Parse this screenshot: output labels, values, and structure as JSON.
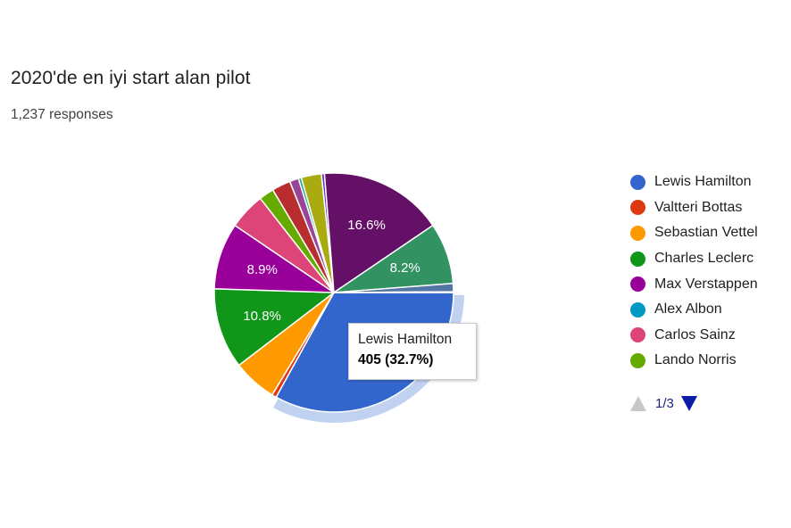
{
  "header": {
    "title": "2020'de en iyi start alan pilot",
    "responses": "1,237 responses"
  },
  "chart_data": {
    "type": "pie",
    "total": 1237,
    "slices": [
      {
        "name": "Lewis Hamilton",
        "percent": 32.7,
        "color": "#3366cc",
        "label": ""
      },
      {
        "name": "Valtteri Bottas",
        "percent": 0.6,
        "color": "#dc3912",
        "label": ""
      },
      {
        "name": "Sebastian Vettel",
        "percent": 5.9,
        "color": "#ff9900",
        "label": ""
      },
      {
        "name": "Charles Leclerc",
        "percent": 10.8,
        "color": "#109618",
        "label": "10.8%"
      },
      {
        "name": "Max Verstappen",
        "percent": 8.9,
        "color": "#990099",
        "label": "8.9%"
      },
      {
        "name": "Alex Albon",
        "percent": 0.0,
        "color": "#0099c6",
        "label": ""
      },
      {
        "name": "Carlos Sainz",
        "percent": 4.9,
        "color": "#dd4477",
        "label": ""
      },
      {
        "name": "Lando Norris",
        "percent": 2.0,
        "color": "#66aa00",
        "label": ""
      },
      {
        "name": "",
        "percent": 2.5,
        "color": "#b82e2e",
        "label": ""
      },
      {
        "name": "",
        "percent": 1.2,
        "color": "#994499",
        "label": ""
      },
      {
        "name": "",
        "percent": 0.4,
        "color": "#22aa99",
        "label": ""
      },
      {
        "name": "",
        "percent": 2.7,
        "color": "#aaaa11",
        "label": ""
      },
      {
        "name": "",
        "percent": 0.4,
        "color": "#6633cc",
        "label": ""
      },
      {
        "name": "",
        "percent": 16.6,
        "color": "#651067",
        "label": "16.6%"
      },
      {
        "name": "",
        "percent": 8.2,
        "color": "#329262",
        "label": "8.2%"
      },
      {
        "name": "",
        "percent": 1.1,
        "color": "#5574a6",
        "label": ""
      },
      {
        "name": "",
        "percent": 0.1,
        "color": "#3b3eac",
        "label": ""
      }
    ],
    "legend_position": "right",
    "highlighted": "Lewis Hamilton"
  },
  "legend": {
    "items": [
      {
        "name": "Lewis Hamilton",
        "color": "#3366cc"
      },
      {
        "name": "Valtteri Bottas",
        "color": "#dc3912"
      },
      {
        "name": "Sebastian Vettel",
        "color": "#ff9900"
      },
      {
        "name": "Charles Leclerc",
        "color": "#109618"
      },
      {
        "name": "Max Verstappen",
        "color": "#990099"
      },
      {
        "name": "Alex Albon",
        "color": "#0099c6"
      },
      {
        "name": "Carlos Sainz",
        "color": "#dd4477"
      },
      {
        "name": "Lando Norris",
        "color": "#66aa00"
      }
    ],
    "page": "1/3",
    "up_icon": "triangle-up-icon",
    "down_icon": "triangle-down-icon"
  },
  "tooltip": {
    "name": "Lewis Hamilton",
    "value": "405 (32.7%)"
  }
}
